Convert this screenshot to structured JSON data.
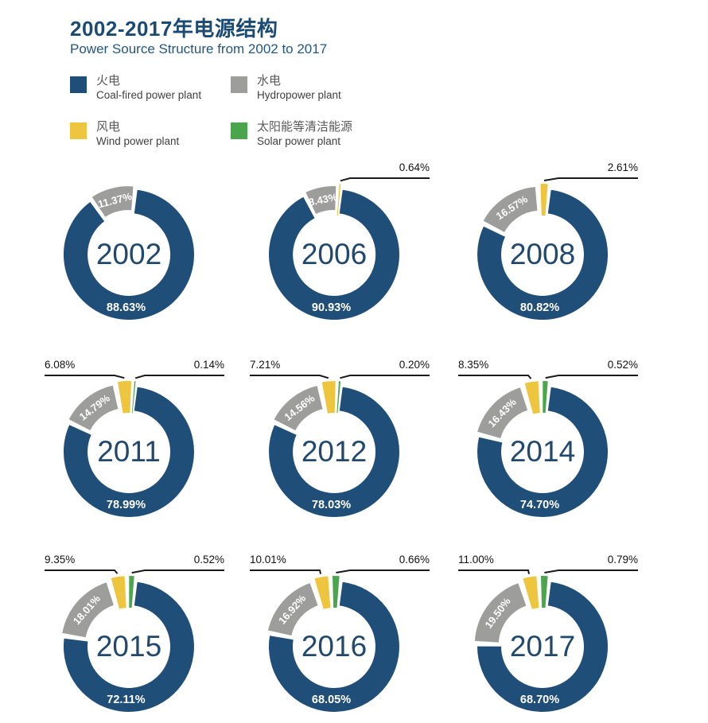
{
  "page": {
    "title_cn": "2002-2017年电源结构",
    "title_en": "Power Source Structure from 2002 to 2017"
  },
  "chart_data": {
    "type": "pie",
    "subtype": "donut-small-multiples",
    "layout": "3x3 grid of donut charts, one per year, slices clockwise from top: coal, hydro, wind, solar; small slices annotated with callout lines",
    "title_cn": "2002-2017年电源结构",
    "title_en": "Power Source Structure from 2002 to 2017",
    "unit": "%",
    "legend": [
      {
        "key": "coal",
        "cn": "火电",
        "en": "Coal-fired power plant",
        "color": "#1F4E79"
      },
      {
        "key": "hydro",
        "cn": "水电",
        "en": "Hydropower plant",
        "color": "#9D9D9C"
      },
      {
        "key": "wind",
        "cn": "风电",
        "en": "Wind power plant",
        "color": "#EEC53E"
      },
      {
        "key": "solar",
        "cn": "太阳能等清洁能源",
        "en": "Solar power plant",
        "color": "#4AA54D"
      }
    ],
    "charts": [
      {
        "year": "2002",
        "coal": 88.63,
        "hydro": 11.37,
        "wind": null,
        "solar": null
      },
      {
        "year": "2006",
        "coal": 90.93,
        "hydro": 8.43,
        "wind": 0.64,
        "solar": null
      },
      {
        "year": "2008",
        "coal": 80.82,
        "hydro": 16.57,
        "wind": 2.61,
        "solar": null
      },
      {
        "year": "2011",
        "coal": 78.99,
        "hydro": 14.79,
        "wind": 6.08,
        "solar": 0.14
      },
      {
        "year": "2012",
        "coal": 78.03,
        "hydro": 14.56,
        "wind": 7.21,
        "solar": 0.2
      },
      {
        "year": "2014",
        "coal": 74.7,
        "hydro": 16.43,
        "wind": 8.35,
        "solar": 0.52
      },
      {
        "year": "2015",
        "coal": 72.11,
        "hydro": 18.01,
        "wind": 9.35,
        "solar": 0.52
      },
      {
        "year": "2016",
        "coal": 68.05,
        "hydro": 16.92,
        "wind": 10.01,
        "solar": 0.66
      },
      {
        "year": "2017",
        "coal": 68.7,
        "hydro": 19.5,
        "wind": 11.0,
        "solar": 0.79
      }
    ],
    "colors": {
      "coal": "#1F4E79",
      "hydro": "#9D9D9C",
      "wind": "#EEC53E",
      "solar": "#4AA54D",
      "year_text": "#21496F",
      "title_text": "#1B4A73",
      "callout_line": "#1a1a1a",
      "slice_label_text": "#ffffff",
      "background": "#ffffff"
    }
  }
}
